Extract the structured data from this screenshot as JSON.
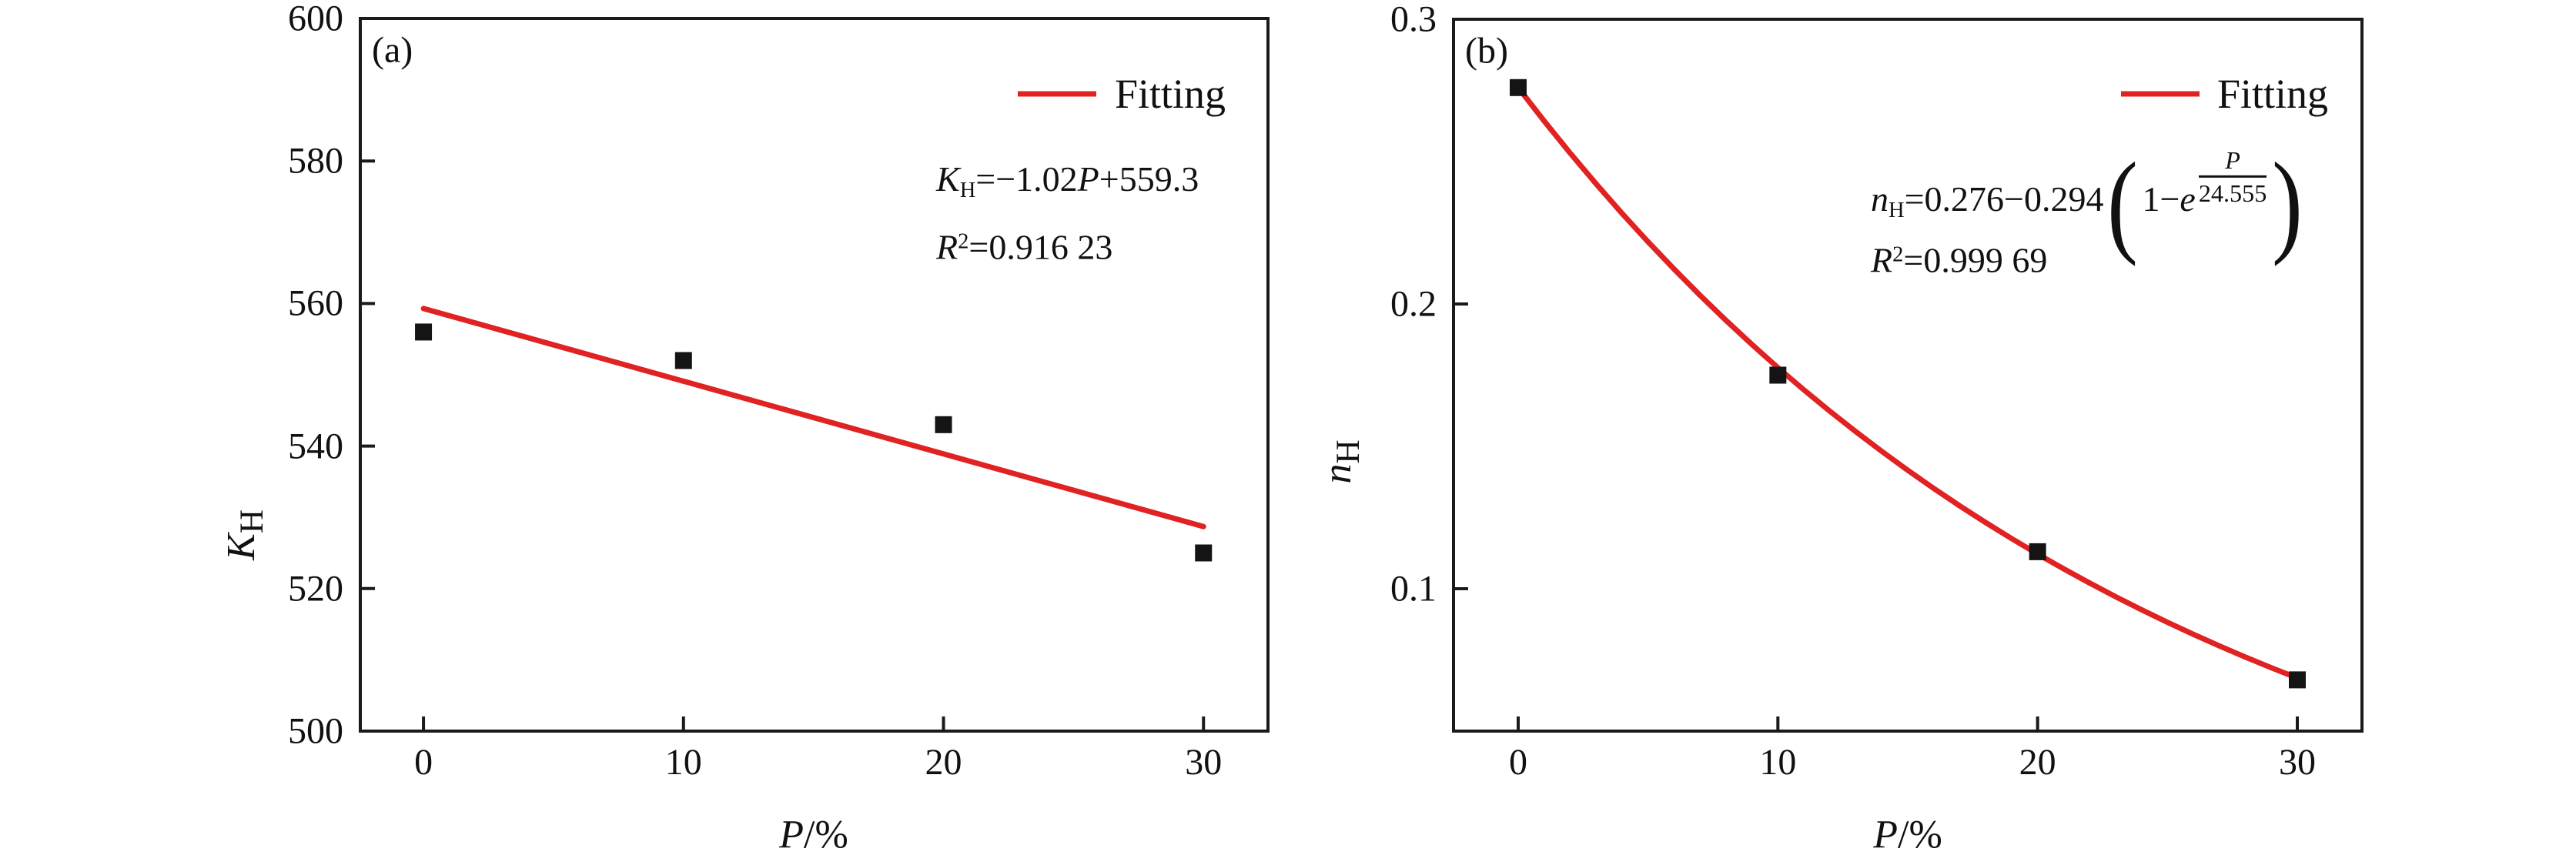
{
  "figure": {
    "kind": "two-panel scatter figure with fitted curves",
    "background": "#ffffff"
  },
  "colors": {
    "fit_line": "#e02222",
    "marker": "#141414",
    "axis": "#1a1a1a",
    "text": "#111111"
  },
  "chart_data": [
    {
      "type": "scatter",
      "panel_label": "(a)",
      "xlabel": "P/%",
      "ylabel": "K_H",
      "xlabel_segments": [
        {
          "k": "vi",
          "t": "P"
        },
        {
          "k": "t",
          "t": "/%"
        }
      ],
      "ylabel_segments": [
        {
          "k": "vi",
          "t": "K"
        },
        {
          "k": "sub",
          "t": "H"
        }
      ],
      "xlim": [
        -2.43,
        32.48
      ],
      "ylim": [
        500,
        600
      ],
      "xticks": {
        "values": [
          0,
          10,
          20,
          30
        ],
        "labels": [
          "0",
          "10",
          "20",
          "30"
        ]
      },
      "yticks": {
        "values": [
          500,
          520,
          540,
          560,
          580,
          600
        ],
        "labels": [
          "500",
          "520",
          "540",
          "560",
          "580",
          "600"
        ]
      },
      "points": [
        {
          "x": 0,
          "y": 556
        },
        {
          "x": 10,
          "y": 552
        },
        {
          "x": 20,
          "y": 543
        },
        {
          "x": 30,
          "y": 525
        }
      ],
      "fit": {
        "kind": "linear",
        "slope": -1.02,
        "intercept": 559.3,
        "domain": [
          0,
          30
        ]
      },
      "legend": {
        "label": "Fitting",
        "position": "top-right"
      },
      "equation_text": "K_H=−1.02P+559.3",
      "equation_segments": [
        {
          "k": "vi",
          "t": "K"
        },
        {
          "k": "sub",
          "t": "H"
        },
        {
          "k": "t",
          "t": "=−1.02"
        },
        {
          "k": "vi",
          "t": "P"
        },
        {
          "k": "t",
          "t": "+559.3"
        }
      ],
      "r2_text": "R²=0.916 23",
      "r2_segments": [
        {
          "k": "vi",
          "t": "R"
        },
        {
          "k": "sup",
          "t": "2"
        },
        {
          "k": "t",
          "t": "=0.916 23"
        }
      ]
    },
    {
      "type": "scatter",
      "panel_label": "(b)",
      "xlabel": "P/%",
      "ylabel": "n_H",
      "xlabel_segments": [
        {
          "k": "vi",
          "t": "P"
        },
        {
          "k": "t",
          "t": "/%"
        }
      ],
      "ylabel_segments": [
        {
          "k": "vi",
          "t": "n"
        },
        {
          "k": "sub",
          "t": "H"
        }
      ],
      "xlim": [
        -2.49,
        32.49
      ],
      "ylim": [
        0.05,
        0.3
      ],
      "xticks": {
        "values": [
          0,
          10,
          20,
          30
        ],
        "labels": [
          "0",
          "10",
          "20",
          "30"
        ]
      },
      "yticks": {
        "values": [
          0.1,
          0.2,
          0.3
        ],
        "labels": [
          "0.1",
          "0.2",
          "0.3"
        ]
      },
      "points": [
        {
          "x": 0,
          "y": 0.276
        },
        {
          "x": 10,
          "y": 0.175
        },
        {
          "x": 20,
          "y": 0.113
        },
        {
          "x": 30,
          "y": 0.068
        }
      ],
      "fit": {
        "kind": "exp",
        "a": 0.276,
        "b": 0.294,
        "tau": 24.555,
        "domain": [
          0,
          30
        ]
      },
      "legend": {
        "label": "Fitting",
        "position": "top-right"
      },
      "equation_text": "n_H=0.276−0.294(1−e^(P/24.555))",
      "equation_segments": [
        {
          "k": "vi",
          "t": "n"
        },
        {
          "k": "sub",
          "t": "H"
        },
        {
          "k": "t",
          "t": "=0.276−0.294"
        },
        {
          "k": "lp"
        },
        {
          "k": "t",
          "t": "1−"
        },
        {
          "k": "vi",
          "t": "e"
        },
        {
          "k": "frac",
          "num": "P",
          "den": "24.555"
        },
        {
          "k": "rp"
        }
      ],
      "r2_text": "R²=0.999 69",
      "r2_segments": [
        {
          "k": "vi",
          "t": "R"
        },
        {
          "k": "sup",
          "t": "2"
        },
        {
          "k": "t",
          "t": "=0.999 69"
        }
      ]
    }
  ]
}
